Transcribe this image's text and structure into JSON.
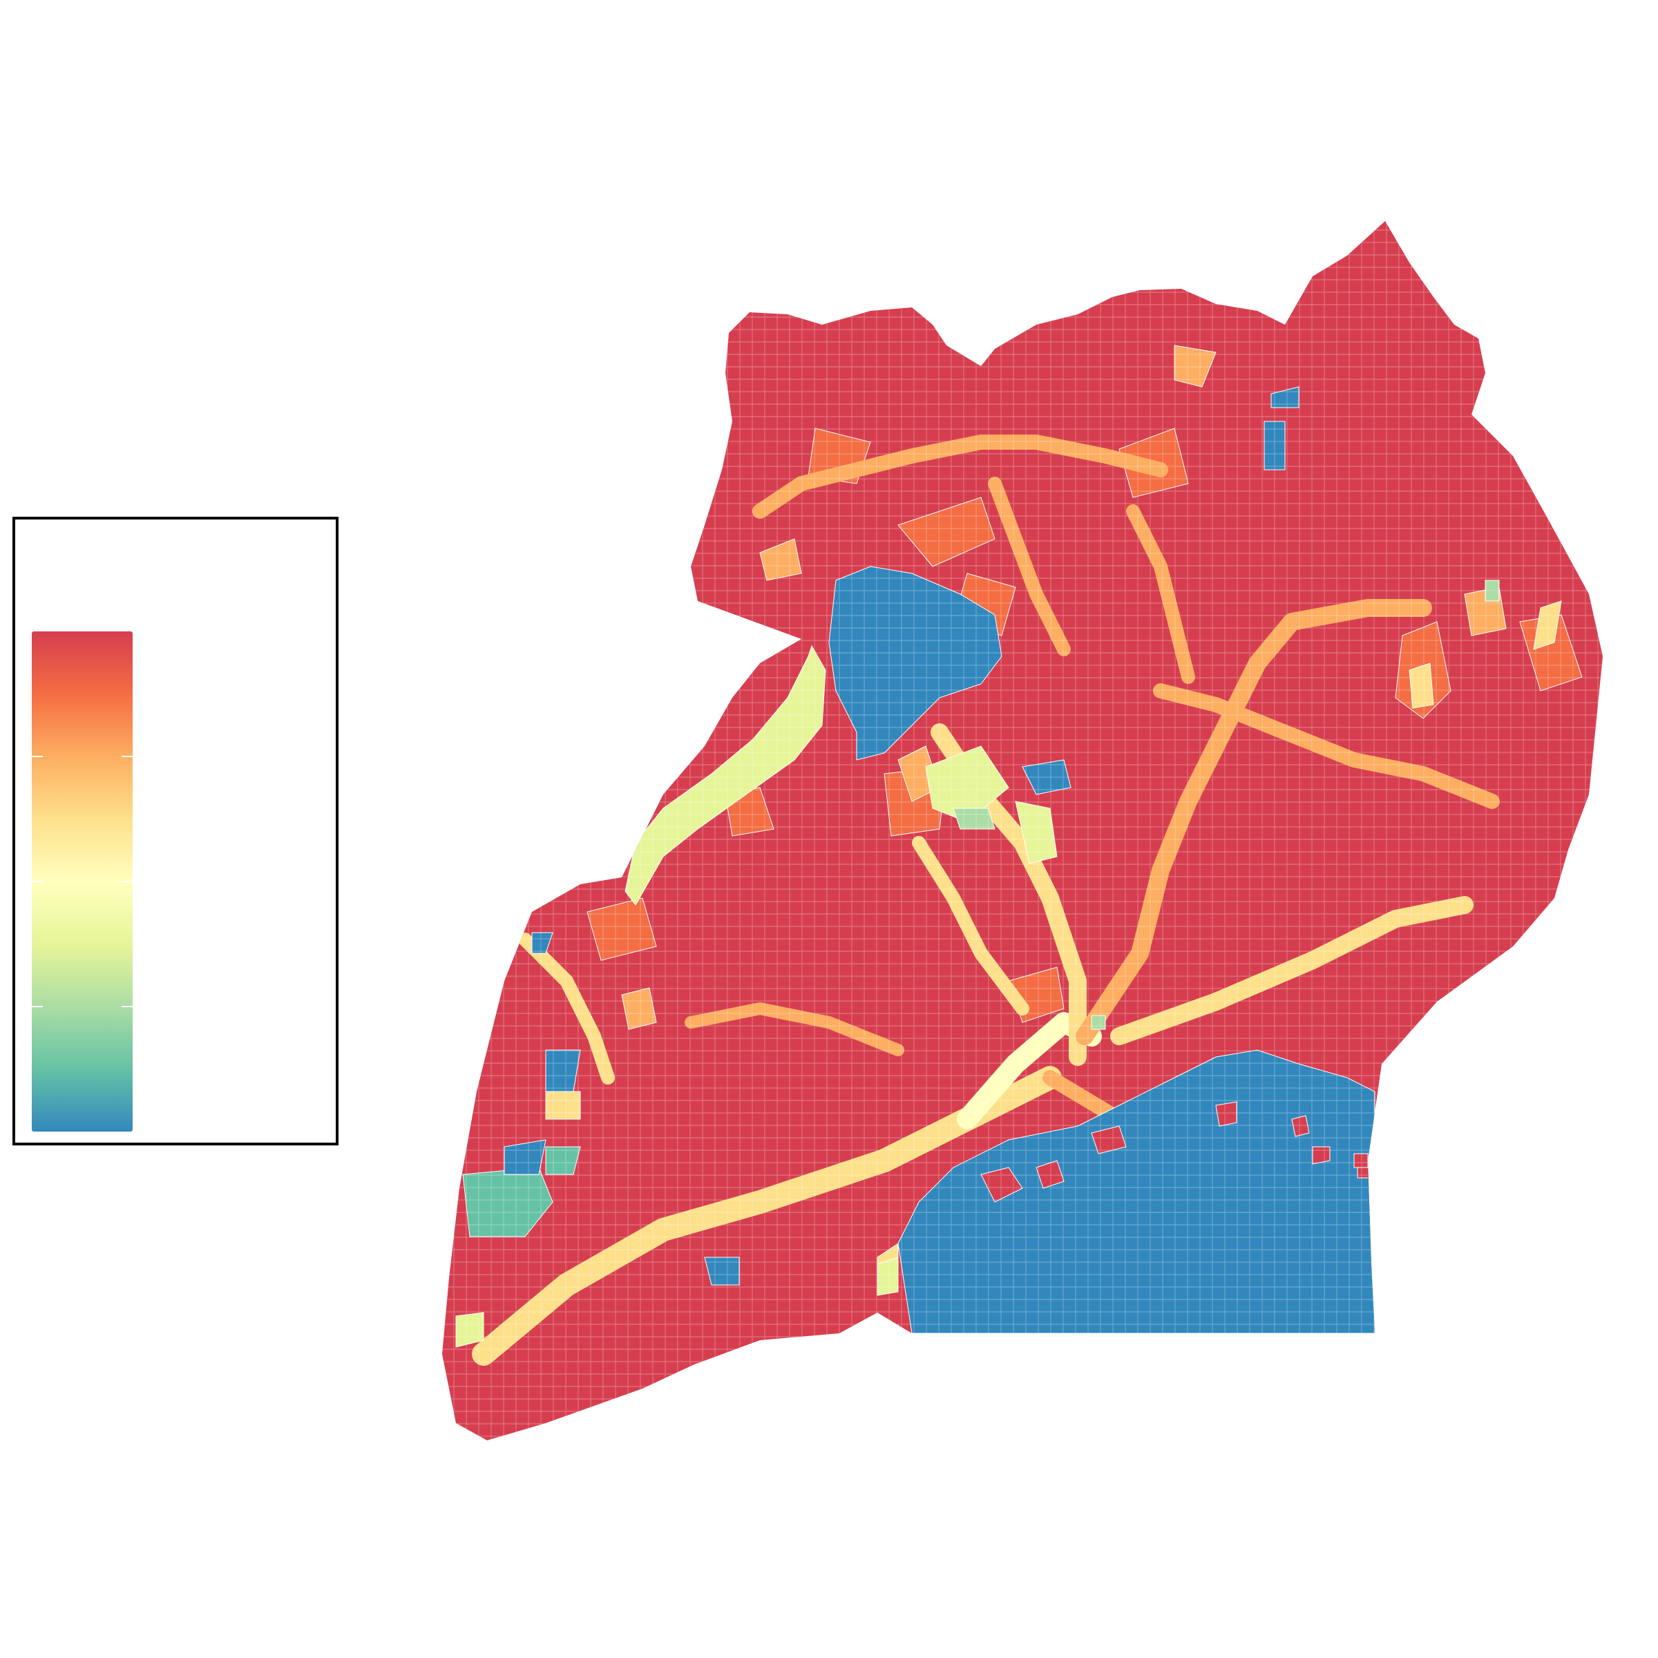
{
  "map": {
    "colors": {
      "dominant": "#d63e4f",
      "high": "#f46d43",
      "mid_high": "#fdae61",
      "mid": "#fee08b",
      "center": "#ffffbf",
      "mid_low": "#e6f598",
      "low": "#abdda4",
      "teal": "#66c2a5",
      "water": "#3288bd"
    }
  },
  "legend": {
    "gradient_stops": [
      "#d63e4f",
      "#f46d43",
      "#fdae61",
      "#fee08b",
      "#ffffbf",
      "#e6f598",
      "#abdda4",
      "#66c2a5",
      "#3288bd"
    ],
    "tick_count": 4,
    "bottom_label": ""
  }
}
